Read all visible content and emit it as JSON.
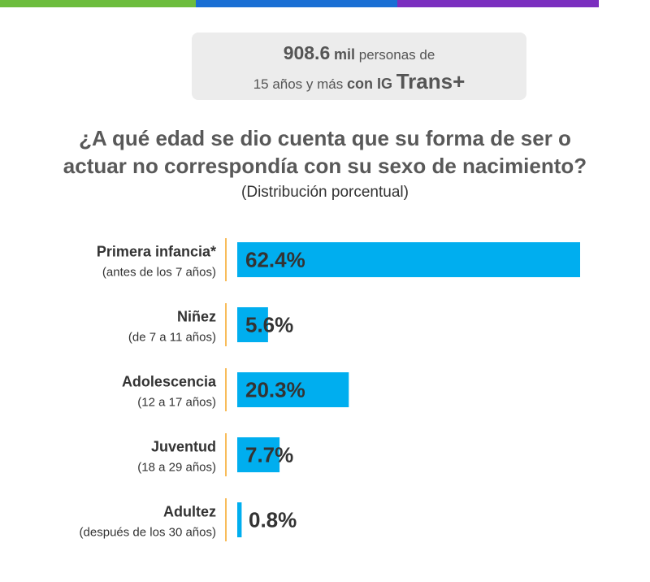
{
  "header": {
    "total": "908.6",
    "unit": "mil",
    "line1_rest": "personas de",
    "line2_start": "15 años y más",
    "line2_con": "con IG",
    "line2_trans": "Trans+"
  },
  "question": {
    "line1": "¿A qué edad se dio cuenta que su forma de ser o",
    "line2": "actuar no correspondía con su sexo de nacimiento?"
  },
  "subtitle": "(Distribución porcentual)",
  "colors": {
    "bar": "#00aeef",
    "separator": "#f5a623",
    "topbar": [
      "#6dbd3e",
      "#1a6fd4",
      "#7b2fbf"
    ]
  },
  "chart_data": {
    "type": "bar",
    "orientation": "horizontal",
    "title": "¿A qué edad se dio cuenta que su forma de ser o actuar no correspondía con su sexo de nacimiento?",
    "subtitle": "(Distribución porcentual)",
    "unit": "%",
    "xlim": [
      0,
      62.4
    ],
    "categories": [
      {
        "label": "Primera infancia*",
        "sublabel": "(antes de los 7 años)",
        "value": 62.4,
        "value_label": "62.4%"
      },
      {
        "label": "Niñez",
        "sublabel": "(de 7 a 11 años)",
        "value": 5.6,
        "value_label": "5.6%"
      },
      {
        "label": "Adolescencia",
        "sublabel": "(12 a 17 años)",
        "value": 20.3,
        "value_label": "20.3%"
      },
      {
        "label": "Juventud",
        "sublabel": "(18 a 29 años)",
        "value": 7.7,
        "value_label": "7.7%"
      },
      {
        "label": "Adultez",
        "sublabel": "(después de los 30 años)",
        "value": 0.8,
        "value_label": "0.8%"
      }
    ]
  }
}
